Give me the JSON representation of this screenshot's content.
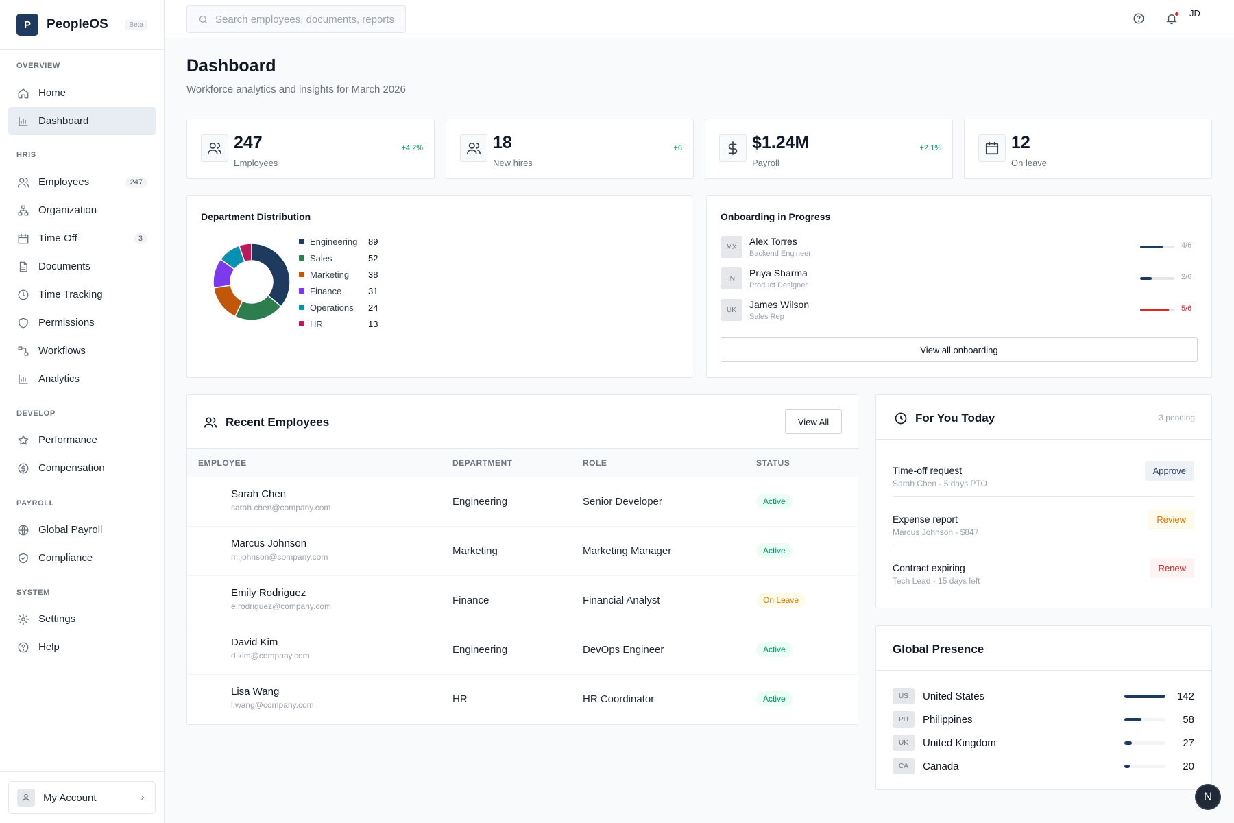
{
  "brand": {
    "logo_letter": "P",
    "name": "PeopleOS",
    "badge": "Beta"
  },
  "sidebar": {
    "sections": [
      {
        "label": "OVERVIEW",
        "items": [
          {
            "label": "Home",
            "icon": "home-icon"
          },
          {
            "label": "Dashboard",
            "icon": "chart-icon",
            "active": true
          }
        ]
      },
      {
        "label": "HRIS",
        "items": [
          {
            "label": "Employees",
            "icon": "users-icon",
            "count": "247"
          },
          {
            "label": "Organization",
            "icon": "org-chart-icon"
          },
          {
            "label": "Time Off",
            "icon": "calendar-icon",
            "count": "3"
          },
          {
            "label": "Documents",
            "icon": "document-icon"
          },
          {
            "label": "Time Tracking",
            "icon": "clock-icon"
          },
          {
            "label": "Permissions",
            "icon": "shield-icon"
          },
          {
            "label": "Workflows",
            "icon": "workflow-icon"
          },
          {
            "label": "Analytics",
            "icon": "chart-icon"
          }
        ]
      },
      {
        "label": "DEVELOP",
        "items": [
          {
            "label": "Performance",
            "icon": "star-icon"
          },
          {
            "label": "Compensation",
            "icon": "coin-icon"
          }
        ]
      },
      {
        "label": "PAYROLL",
        "items": [
          {
            "label": "Global Payroll",
            "icon": "globe-icon"
          },
          {
            "label": "Compliance",
            "icon": "shield-check-icon"
          }
        ]
      },
      {
        "label": "SYSTEM",
        "items": [
          {
            "label": "Settings",
            "icon": "gear-icon"
          },
          {
            "label": "Help",
            "icon": "help-icon"
          }
        ]
      }
    ],
    "account": {
      "label": "My Account"
    }
  },
  "topbar": {
    "search_placeholder": "Search employees, documents, reports",
    "user_initials": "JD"
  },
  "page": {
    "title": "Dashboard",
    "subtitle": "Workforce analytics and insights for March 2026"
  },
  "stats": [
    {
      "value": "247",
      "label": "Employees",
      "delta": "+4.2%",
      "icon": "users-icon"
    },
    {
      "value": "18",
      "label": "New hires",
      "delta": "+6",
      "icon": "users-icon"
    },
    {
      "value": "$1.24M",
      "label": "Payroll",
      "delta": "+2.1%",
      "icon": "dollar-icon"
    },
    {
      "value": "12",
      "label": "On leave",
      "delta": "",
      "icon": "calendar-icon"
    }
  ],
  "department": {
    "title": "Department Distribution",
    "chart_data": {
      "type": "pie",
      "donut": true,
      "categories": [
        "Engineering",
        "Sales",
        "Marketing",
        "Finance",
        "Operations",
        "HR"
      ],
      "values": [
        89,
        52,
        38,
        31,
        24,
        13
      ],
      "colors": [
        "#1e3a5f",
        "#2e7d4f",
        "#c2570c",
        "#7c3aed",
        "#0891b2",
        "#be185d"
      ],
      "legend": "right"
    }
  },
  "onboarding": {
    "title": "Onboarding in Progress",
    "items": [
      {
        "initials": "MX",
        "name": "Alex Torres",
        "role": "Backend Engineer",
        "progress": "4/6",
        "fraction": 0.667,
        "color": "#1e3a5f"
      },
      {
        "initials": "IN",
        "name": "Priya Sharma",
        "role": "Product Designer",
        "progress": "2/6",
        "fraction": 0.333,
        "color": "#1e3a5f"
      },
      {
        "initials": "UK",
        "name": "James Wilson",
        "role": "Sales Rep",
        "progress": "5/6",
        "fraction": 0.833,
        "color": "#dc2626"
      }
    ],
    "button": "View all onboarding"
  },
  "recent": {
    "title": "Recent Employees",
    "view_all": "View All",
    "columns": [
      "EMPLOYEE",
      "DEPARTMENT",
      "ROLE",
      "STATUS"
    ],
    "rows": [
      {
        "name": "Sarah Chen",
        "email": "sarah.chen@company.com",
        "department": "Engineering",
        "role": "Senior Developer",
        "status": "Active"
      },
      {
        "name": "Marcus Johnson",
        "email": "m.johnson@company.com",
        "department": "Marketing",
        "role": "Marketing Manager",
        "status": "Active"
      },
      {
        "name": "Emily Rodriguez",
        "email": "e.rodriguez@company.com",
        "department": "Finance",
        "role": "Financial Analyst",
        "status": "On Leave"
      },
      {
        "name": "David Kim",
        "email": "d.kim@company.com",
        "department": "Engineering",
        "role": "DevOps Engineer",
        "status": "Active"
      },
      {
        "name": "Lisa Wang",
        "email": "l.wang@company.com",
        "department": "HR",
        "role": "HR Coordinator",
        "status": "Active"
      }
    ]
  },
  "for_you": {
    "title": "For You Today",
    "pending": "3 pending",
    "items": [
      {
        "title": "Time-off request",
        "detail": "Sarah Chen - 5 days PTO",
        "action": "Approve",
        "kind": "approve"
      },
      {
        "title": "Expense report",
        "detail": "Marcus Johnson - $847",
        "action": "Review",
        "kind": "review"
      },
      {
        "title": "Contract expiring",
        "detail": "Tech Lead - 15 days left",
        "action": "Renew",
        "kind": "renew"
      }
    ]
  },
  "global": {
    "title": "Global Presence",
    "items": [
      {
        "code": "US",
        "country": "United States",
        "count": "142",
        "fraction": 1.0
      },
      {
        "code": "PH",
        "country": "Philippines",
        "count": "58",
        "fraction": 0.41
      },
      {
        "code": "UK",
        "country": "United Kingdom",
        "count": "27",
        "fraction": 0.19
      },
      {
        "code": "CA",
        "country": "Canada",
        "count": "20",
        "fraction": 0.14
      }
    ]
  },
  "fab_label": "N"
}
